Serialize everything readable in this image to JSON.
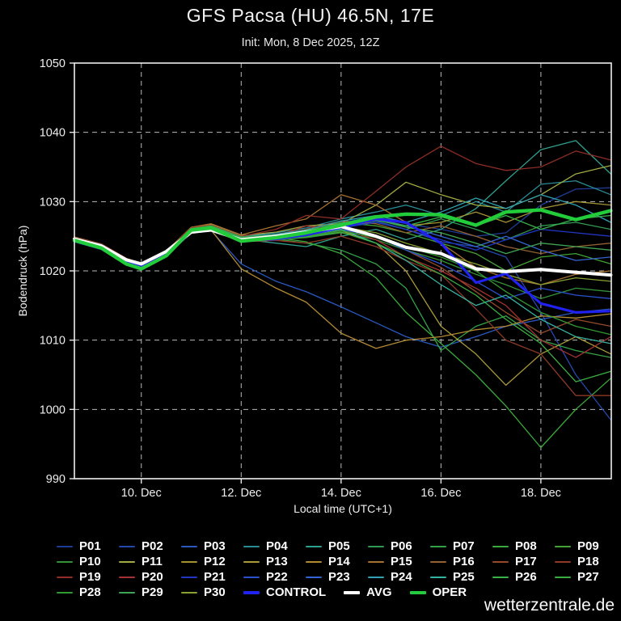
{
  "title": "GFS Pacsa (HU) 46.5N, 17E",
  "subtitle": "Init: Mon, 8 Dec 2025, 12Z",
  "watermark": "wetterzentrale.de",
  "chart_data": {
    "type": "line",
    "title": "GFS Pacsa (HU) 46.5N, 17E",
    "subtitle": "Init: Mon, 8 Dec 2025, 12Z",
    "xlabel": "Local time (UTC+1)",
    "ylabel": "Bodendruck (hPa)",
    "ylim": [
      990,
      1050
    ],
    "y_ticks": [
      990,
      1000,
      1010,
      1020,
      1030,
      1040,
      1050
    ],
    "x_range_days": [
      8.66,
      19.41
    ],
    "x_ticks": [
      {
        "day": 10,
        "label": "10. Dec"
      },
      {
        "day": 12,
        "label": "12. Dec"
      },
      {
        "day": 14,
        "label": "14. Dec"
      },
      {
        "day": 16,
        "label": "16. Dec"
      },
      {
        "day": 18,
        "label": "18. Dec"
      }
    ],
    "grid": "dashed",
    "legend_position": "bottom",
    "x_days": [
      8.66,
      9.2,
      9.7,
      10.0,
      10.5,
      11.0,
      11.4,
      12.0,
      12.7,
      13.3,
      14.0,
      14.7,
      15.3,
      16.0,
      16.7,
      17.3,
      18.0,
      18.7,
      19.4
    ],
    "series": [
      {
        "name": "P01",
        "color": "#1e3c96",
        "width": 1.3,
        "values": [
          1024.6,
          1023.7,
          1021.6,
          1020.9,
          1022.7,
          1026.0,
          1026.5,
          1024.9,
          1025.2,
          1025.6,
          1027.0,
          1027.8,
          1026.8,
          1026.0,
          1025.0,
          1025.5,
          1029.5,
          1031.8,
          1032.0
        ]
      },
      {
        "name": "P02",
        "color": "#2448aa",
        "width": 1.3,
        "values": [
          1024.4,
          1023.4,
          1021.3,
          1020.6,
          1022.4,
          1025.7,
          1026.1,
          1024.5,
          1024.8,
          1025.3,
          1026.5,
          1027.2,
          1026.0,
          1024.2,
          1023.5,
          1022.0,
          1014.0,
          1005.0,
          998.5
        ]
      },
      {
        "name": "P03",
        "color": "#2a58c0",
        "width": 1.3,
        "values": [
          1024.3,
          1023.2,
          1021.1,
          1020.4,
          1022.2,
          1025.4,
          1025.8,
          1021.0,
          1018.5,
          1017.0,
          1014.8,
          1012.5,
          1010.5,
          1009.0,
          1010.5,
          1012.0,
          1013.0,
          1014.0,
          1014.5
        ]
      },
      {
        "name": "P04",
        "color": "#2a8c96",
        "width": 1.3,
        "values": [
          1024.7,
          1023.8,
          1021.7,
          1021.0,
          1022.8,
          1026.1,
          1026.6,
          1025.0,
          1025.5,
          1026.2,
          1027.5,
          1028.5,
          1029.5,
          1028.0,
          1030.0,
          1028.5,
          1032.5,
          1033.0,
          1031.0
        ]
      },
      {
        "name": "P05",
        "color": "#2ea08e",
        "width": 1.3,
        "values": [
          1024.5,
          1023.5,
          1021.4,
          1020.7,
          1022.5,
          1025.8,
          1026.2,
          1024.6,
          1024.0,
          1023.5,
          1025.0,
          1026.0,
          1024.5,
          1026.0,
          1029.0,
          1033.0,
          1037.5,
          1038.8,
          1034.0
        ]
      },
      {
        "name": "P06",
        "color": "#2f9a50",
        "width": 1.3,
        "values": [
          1024.6,
          1023.6,
          1021.5,
          1020.8,
          1022.6,
          1025.9,
          1026.3,
          1024.7,
          1025.0,
          1025.4,
          1026.5,
          1027.0,
          1026.0,
          1027.5,
          1026.0,
          1024.5,
          1026.5,
          1027.0,
          1026.0
        ]
      },
      {
        "name": "P07",
        "color": "#33a246",
        "width": 1.3,
        "values": [
          1024.4,
          1023.4,
          1021.3,
          1020.6,
          1022.4,
          1025.6,
          1026.0,
          1024.4,
          1024.6,
          1024.0,
          1023.0,
          1021.0,
          1017.5,
          1008.5,
          1012.0,
          1013.5,
          1010.0,
          1008.5,
          1007.5
        ]
      },
      {
        "name": "P08",
        "color": "#3aaa3a",
        "width": 1.3,
        "values": [
          1024.5,
          1023.5,
          1021.4,
          1020.7,
          1022.5,
          1025.8,
          1026.2,
          1024.5,
          1024.8,
          1024.2,
          1022.5,
          1019.0,
          1014.0,
          1009.5,
          1005.0,
          1000.5,
          994.5,
          1000.0,
          1004.5
        ]
      },
      {
        "name": "P09",
        "color": "#42a232",
        "width": 1.3,
        "values": [
          1024.7,
          1023.7,
          1021.6,
          1020.9,
          1022.7,
          1026.0,
          1026.4,
          1024.8,
          1025.2,
          1025.8,
          1027.0,
          1026.5,
          1025.5,
          1024.0,
          1022.5,
          1020.0,
          1022.0,
          1022.5,
          1021.0
        ]
      },
      {
        "name": "P10",
        "color": "#339238",
        "width": 1.3,
        "values": [
          1024.3,
          1023.3,
          1021.2,
          1020.5,
          1022.3,
          1025.5,
          1025.9,
          1024.3,
          1024.5,
          1024.8,
          1025.5,
          1024.5,
          1023.0,
          1021.5,
          1019.5,
          1018.0,
          1016.0,
          1017.5,
          1017.0
        ]
      },
      {
        "name": "P11",
        "color": "#a2aa42",
        "width": 1.3,
        "values": [
          1024.8,
          1023.8,
          1021.7,
          1021.0,
          1022.8,
          1026.2,
          1026.7,
          1025.1,
          1025.6,
          1026.5,
          1026.8,
          1029.5,
          1032.8,
          1031.0,
          1029.5,
          1029.0,
          1031.0,
          1034.0,
          1035.2
        ]
      },
      {
        "name": "P12",
        "color": "#a29232",
        "width": 1.3,
        "values": [
          1024.6,
          1023.6,
          1021.5,
          1020.8,
          1022.6,
          1025.9,
          1026.4,
          1024.8,
          1025.0,
          1025.5,
          1026.8,
          1027.5,
          1026.5,
          1027.0,
          1028.5,
          1027.0,
          1029.0,
          1030.0,
          1029.5
        ]
      },
      {
        "name": "P13",
        "color": "#aa9a3a",
        "width": 1.3,
        "values": [
          1024.5,
          1023.5,
          1021.4,
          1020.7,
          1022.5,
          1025.7,
          1026.1,
          1024.5,
          1024.7,
          1025.0,
          1025.8,
          1024.0,
          1020.0,
          1012.0,
          1008.0,
          1003.5,
          1008.0,
          1010.5,
          1008.0
        ]
      },
      {
        "name": "P14",
        "color": "#b28a32",
        "width": 1.3,
        "values": [
          1024.4,
          1023.3,
          1021.2,
          1020.5,
          1022.3,
          1025.5,
          1025.9,
          1020.3,
          1017.5,
          1015.5,
          1011.0,
          1008.8,
          1010.0,
          1010.5,
          1011.5,
          1012.0,
          1013.5,
          1013.2,
          1013.8
        ]
      },
      {
        "name": "P15",
        "color": "#a67030",
        "width": 1.3,
        "values": [
          1024.9,
          1023.9,
          1021.8,
          1021.1,
          1022.9,
          1026.3,
          1026.8,
          1025.2,
          1026.5,
          1027.5,
          1031.0,
          1029.5,
          1027.0,
          1024.0,
          1020.5,
          1019.0,
          1018.0,
          1019.5,
          1020.0
        ]
      },
      {
        "name": "P16",
        "color": "#946232",
        "width": 1.3,
        "values": [
          1024.7,
          1023.7,
          1021.6,
          1020.9,
          1022.7,
          1026.1,
          1026.5,
          1024.9,
          1025.3,
          1026.0,
          1027.2,
          1026.8,
          1025.5,
          1026.5,
          1025.0,
          1023.5,
          1022.5,
          1023.5,
          1024.0
        ]
      },
      {
        "name": "P17",
        "color": "#964a2a",
        "width": 1.3,
        "values": [
          1024.5,
          1023.4,
          1021.3,
          1020.6,
          1022.4,
          1025.6,
          1026.0,
          1024.4,
          1024.8,
          1025.5,
          1026.5,
          1025.0,
          1023.0,
          1020.5,
          1017.0,
          1014.0,
          1011.0,
          1013.0,
          1012.0
        ]
      },
      {
        "name": "P18",
        "color": "#8e3a26",
        "width": 1.3,
        "values": [
          1024.4,
          1023.3,
          1021.2,
          1020.5,
          1022.3,
          1025.4,
          1025.8,
          1024.2,
          1024.4,
          1024.0,
          1025.0,
          1023.5,
          1021.5,
          1019.5,
          1014.5,
          1010.0,
          1008.0,
          1002.0,
          1002.0
        ]
      },
      {
        "name": "P19",
        "color": "#8e2e26",
        "width": 1.3,
        "values": [
          1024.8,
          1023.9,
          1021.8,
          1021.1,
          1022.9,
          1026.2,
          1026.6,
          1025.0,
          1026.0,
          1028.0,
          1027.5,
          1031.5,
          1035.0,
          1038.0,
          1035.5,
          1034.5,
          1035.0,
          1037.3,
          1036.0
        ]
      },
      {
        "name": "P20",
        "color": "#a43232",
        "width": 1.3,
        "values": [
          1024.6,
          1023.6,
          1021.5,
          1020.8,
          1022.6,
          1025.8,
          1026.2,
          1024.6,
          1025.0,
          1026.5,
          1026.0,
          1024.5,
          1022.0,
          1020.0,
          1017.5,
          1015.0,
          1010.0,
          1007.5,
          1010.5
        ]
      },
      {
        "name": "P21",
        "color": "#2236c4",
        "width": 1.3,
        "values": [
          1024.5,
          1023.5,
          1021.4,
          1020.7,
          1022.5,
          1025.7,
          1026.2,
          1024.6,
          1024.9,
          1025.3,
          1026.2,
          1027.0,
          1026.0,
          1024.5,
          1023.0,
          1024.5,
          1026.0,
          1025.5,
          1025.0
        ]
      },
      {
        "name": "P22",
        "color": "#2a50d0",
        "width": 1.3,
        "values": [
          1024.4,
          1023.4,
          1021.3,
          1020.6,
          1022.4,
          1025.6,
          1026.0,
          1024.4,
          1024.7,
          1025.1,
          1026.0,
          1025.0,
          1023.0,
          1021.0,
          1018.5,
          1016.0,
          1017.5,
          1016.5,
          1016.0
        ]
      },
      {
        "name": "P23",
        "color": "#3464d2",
        "width": 1.3,
        "values": [
          1024.6,
          1023.6,
          1021.5,
          1020.8,
          1022.6,
          1025.9,
          1026.3,
          1024.7,
          1025.1,
          1025.6,
          1026.8,
          1027.5,
          1026.5,
          1025.0,
          1023.5,
          1025.0,
          1023.0,
          1021.5,
          1022.0
        ]
      },
      {
        "name": "P24",
        "color": "#30a2b2",
        "width": 1.3,
        "values": [
          1024.7,
          1023.8,
          1021.7,
          1021.0,
          1022.8,
          1026.0,
          1026.5,
          1024.9,
          1025.3,
          1025.9,
          1027.2,
          1028.0,
          1027.0,
          1028.5,
          1030.5,
          1029.0,
          1031.0,
          1029.5,
          1027.0
        ]
      },
      {
        "name": "P25",
        "color": "#36b2a2",
        "width": 1.3,
        "values": [
          1024.5,
          1023.5,
          1021.4,
          1020.7,
          1022.5,
          1025.7,
          1026.1,
          1024.5,
          1024.8,
          1025.2,
          1026.0,
          1024.0,
          1021.5,
          1018.0,
          1015.0,
          1016.5,
          1013.0,
          1010.5,
          1009.5
        ]
      },
      {
        "name": "P26",
        "color": "#38b248",
        "width": 1.3,
        "values": [
          1024.6,
          1023.7,
          1021.6,
          1020.9,
          1022.7,
          1026.0,
          1026.4,
          1024.8,
          1025.1,
          1025.5,
          1026.6,
          1027.3,
          1026.5,
          1027.8,
          1026.5,
          1028.0,
          1026.0,
          1027.5,
          1028.0
        ]
      },
      {
        "name": "P27",
        "color": "#3cae40",
        "width": 1.3,
        "values": [
          1024.4,
          1023.4,
          1021.3,
          1020.6,
          1022.4,
          1025.5,
          1025.9,
          1024.3,
          1024.6,
          1024.9,
          1025.6,
          1024.0,
          1022.0,
          1019.5,
          1016.5,
          1013.0,
          1009.5,
          1004.0,
          1005.5
        ]
      },
      {
        "name": "P28",
        "color": "#329a32",
        "width": 1.3,
        "values": [
          1024.5,
          1023.5,
          1021.4,
          1020.7,
          1022.5,
          1025.6,
          1026.0,
          1024.4,
          1024.7,
          1025.0,
          1025.8,
          1024.8,
          1023.5,
          1022.0,
          1020.0,
          1017.0,
          1014.0,
          1012.0,
          1010.8
        ]
      },
      {
        "name": "P29",
        "color": "#3ea652",
        "width": 1.3,
        "values": [
          1024.7,
          1023.7,
          1021.6,
          1020.9,
          1022.7,
          1026.1,
          1026.5,
          1024.9,
          1025.2,
          1025.7,
          1026.9,
          1027.4,
          1026.3,
          1025.5,
          1024.0,
          1022.5,
          1024.0,
          1023.5,
          1023.0
        ]
      },
      {
        "name": "P30",
        "color": "#8aa232",
        "width": 1.3,
        "values": [
          1024.6,
          1023.6,
          1021.5,
          1020.8,
          1022.6,
          1025.8,
          1026.2,
          1024.6,
          1024.9,
          1025.4,
          1026.4,
          1025.5,
          1024.0,
          1022.5,
          1021.0,
          1019.5,
          1018.0,
          1019.0,
          1018.5
        ]
      },
      {
        "name": "CONTROL",
        "color": "#2121f0",
        "width": 3.2,
        "values": [
          1024.3,
          1023.2,
          1021.2,
          1020.6,
          1022.4,
          1025.6,
          1026.0,
          1024.4,
          1024.6,
          1025.2,
          1026.3,
          1027.5,
          1027.0,
          1024.0,
          1018.3,
          1019.6,
          1015.3,
          1014.0,
          1014.2
        ]
      },
      {
        "name": "AVG",
        "color": "#ffffff",
        "width": 4.0,
        "values": [
          1024.6,
          1023.6,
          1021.6,
          1021.0,
          1022.8,
          1025.6,
          1025.9,
          1024.5,
          1025.0,
          1025.6,
          1026.4,
          1025.0,
          1023.4,
          1022.5,
          1020.3,
          1019.9,
          1020.2,
          1019.8,
          1019.4
        ]
      },
      {
        "name": "OPER",
        "color": "#22cc3a",
        "width": 4.4,
        "values": [
          1024.4,
          1023.3,
          1021.0,
          1020.3,
          1022.2,
          1025.9,
          1026.2,
          1024.3,
          1024.8,
          1025.5,
          1026.6,
          1027.8,
          1028.2,
          1028.1,
          1026.6,
          1028.5,
          1028.8,
          1027.4,
          1028.7
        ]
      }
    ]
  }
}
